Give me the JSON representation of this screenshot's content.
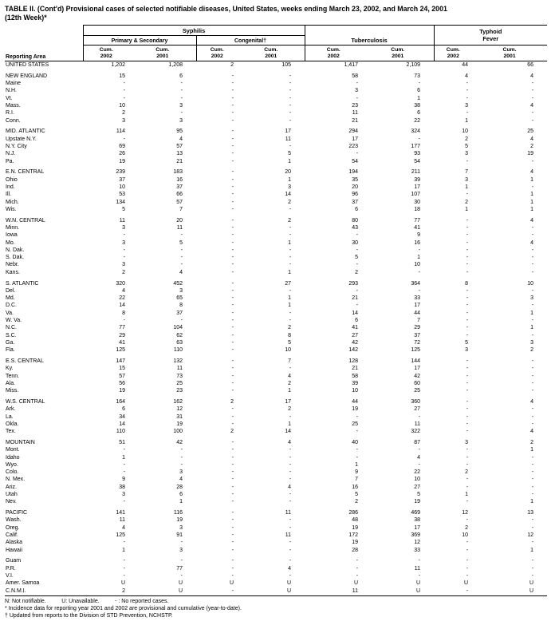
{
  "title": {
    "line1": "TABLE II. (Cont'd) Provisional cases of selected notifiable diseases, United States, weeks ending March 23, 2002, and March 24, 2001",
    "line2": "(12th Week)*"
  },
  "header": {
    "reporting_area": "Reporting Area",
    "syphilis": "Syphilis",
    "primary_secondary": "Primary & Secondary",
    "congenital": "Congenital†",
    "tuberculosis": "Tuberculosis",
    "typhoid_line1": "Typhoid",
    "typhoid_line2": "Fever",
    "cum": "Cum.",
    "years": [
      "2002",
      "2001"
    ]
  },
  "rows": [
    {
      "area": "UNITED STATES",
      "gap": false,
      "values": [
        "1,202",
        "1,208",
        "2",
        "105",
        "1,417",
        "2,109",
        "44",
        "66"
      ]
    },
    {
      "area": "NEW ENGLAND",
      "gap": true,
      "values": [
        "15",
        "6",
        "-",
        "-",
        "58",
        "73",
        "4",
        "4"
      ]
    },
    {
      "area": "Maine",
      "gap": false,
      "values": [
        "-",
        "-",
        "-",
        "-",
        "-",
        "-",
        "-",
        "-"
      ]
    },
    {
      "area": "N.H.",
      "gap": false,
      "values": [
        "-",
        "-",
        "-",
        "-",
        "3",
        "6",
        "-",
        "-"
      ]
    },
    {
      "area": "Vt.",
      "gap": false,
      "values": [
        "-",
        "-",
        "-",
        "-",
        "-",
        "1",
        "-",
        "-"
      ]
    },
    {
      "area": "Mass.",
      "gap": false,
      "values": [
        "10",
        "3",
        "-",
        "-",
        "23",
        "38",
        "3",
        "4"
      ]
    },
    {
      "area": "R.I.",
      "gap": false,
      "values": [
        "2",
        "-",
        "-",
        "-",
        "11",
        "6",
        "-",
        "-"
      ]
    },
    {
      "area": "Conn.",
      "gap": false,
      "values": [
        "3",
        "3",
        "-",
        "-",
        "21",
        "22",
        "1",
        "-"
      ]
    },
    {
      "area": "MID. ATLANTIC",
      "gap": true,
      "values": [
        "114",
        "95",
        "-",
        "17",
        "294",
        "324",
        "10",
        "25"
      ]
    },
    {
      "area": "Upstate N.Y.",
      "gap": false,
      "values": [
        "-",
        "4",
        "-",
        "11",
        "17",
        "-",
        "2",
        "4"
      ]
    },
    {
      "area": "N.Y. City",
      "gap": false,
      "values": [
        "69",
        "57",
        "-",
        "-",
        "223",
        "177",
        "5",
        "2"
      ]
    },
    {
      "area": "N.J.",
      "gap": false,
      "values": [
        "26",
        "13",
        "-",
        "5",
        "-",
        "93",
        "3",
        "19"
      ]
    },
    {
      "area": "Pa.",
      "gap": false,
      "values": [
        "19",
        "21",
        "-",
        "1",
        "54",
        "54",
        "-",
        "-"
      ]
    },
    {
      "area": "E.N. CENTRAL",
      "gap": true,
      "values": [
        "239",
        "183",
        "-",
        "20",
        "194",
        "211",
        "7",
        "4"
      ]
    },
    {
      "area": "Ohio",
      "gap": false,
      "values": [
        "37",
        "16",
        "-",
        "1",
        "35",
        "39",
        "3",
        "1"
      ]
    },
    {
      "area": "Ind.",
      "gap": false,
      "values": [
        "10",
        "37",
        "-",
        "3",
        "20",
        "17",
        "1",
        "-"
      ]
    },
    {
      "area": "Ill.",
      "gap": false,
      "values": [
        "53",
        "66",
        "-",
        "14",
        "96",
        "107",
        "-",
        "1"
      ]
    },
    {
      "area": "Mich.",
      "gap": false,
      "values": [
        "134",
        "57",
        "-",
        "2",
        "37",
        "30",
        "2",
        "1"
      ]
    },
    {
      "area": "Wis.",
      "gap": false,
      "values": [
        "5",
        "7",
        "-",
        "-",
        "6",
        "18",
        "1",
        "1"
      ]
    },
    {
      "area": "W.N. CENTRAL",
      "gap": true,
      "values": [
        "11",
        "20",
        "-",
        "2",
        "80",
        "77",
        "-",
        "4"
      ]
    },
    {
      "area": "Minn.",
      "gap": false,
      "values": [
        "3",
        "11",
        "-",
        "-",
        "43",
        "41",
        "-",
        "-"
      ]
    },
    {
      "area": "Iowa",
      "gap": false,
      "values": [
        "-",
        "-",
        "-",
        "-",
        "-",
        "9",
        "-",
        "-"
      ]
    },
    {
      "area": "Mo.",
      "gap": false,
      "values": [
        "3",
        "5",
        "-",
        "1",
        "30",
        "16",
        "-",
        "4"
      ]
    },
    {
      "area": "N. Dak.",
      "gap": false,
      "values": [
        "-",
        "-",
        "-",
        "-",
        "-",
        "-",
        "-",
        "-"
      ]
    },
    {
      "area": "S. Dak.",
      "gap": false,
      "values": [
        "-",
        "-",
        "-",
        "-",
        "5",
        "1",
        "-",
        "-"
      ]
    },
    {
      "area": "Nebr.",
      "gap": false,
      "values": [
        "3",
        "-",
        "-",
        "-",
        "-",
        "10",
        "-",
        "-"
      ]
    },
    {
      "area": "Kans.",
      "gap": false,
      "values": [
        "2",
        "4",
        "-",
        "1",
        "2",
        "-",
        "-",
        "-"
      ]
    },
    {
      "area": "S. ATLANTIC",
      "gap": true,
      "values": [
        "320",
        "452",
        "-",
        "27",
        "293",
        "364",
        "8",
        "10"
      ]
    },
    {
      "area": "Del.",
      "gap": false,
      "values": [
        "4",
        "3",
        "-",
        "-",
        "-",
        "-",
        "-",
        "-"
      ]
    },
    {
      "area": "Md.",
      "gap": false,
      "values": [
        "22",
        "65",
        "-",
        "1",
        "21",
        "33",
        "-",
        "3"
      ]
    },
    {
      "area": "D.C.",
      "gap": false,
      "values": [
        "14",
        "8",
        "-",
        "1",
        "-",
        "17",
        "-",
        "-"
      ]
    },
    {
      "area": "Va.",
      "gap": false,
      "values": [
        "8",
        "37",
        "-",
        "-",
        "14",
        "44",
        "-",
        "1"
      ]
    },
    {
      "area": "W. Va.",
      "gap": false,
      "values": [
        "-",
        "-",
        "-",
        "-",
        "6",
        "7",
        "-",
        "-"
      ]
    },
    {
      "area": "N.C.",
      "gap": false,
      "values": [
        "77",
        "104",
        "-",
        "2",
        "41",
        "29",
        "-",
        "1"
      ]
    },
    {
      "area": "S.C.",
      "gap": false,
      "values": [
        "29",
        "62",
        "-",
        "8",
        "27",
        "37",
        "-",
        "-"
      ]
    },
    {
      "area": "Ga.",
      "gap": false,
      "values": [
        "41",
        "63",
        "-",
        "5",
        "42",
        "72",
        "5",
        "3"
      ]
    },
    {
      "area": "Fla.",
      "gap": false,
      "values": [
        "125",
        "110",
        "-",
        "10",
        "142",
        "125",
        "3",
        "2"
      ]
    },
    {
      "area": "E.S. CENTRAL",
      "gap": true,
      "values": [
        "147",
        "132",
        "-",
        "7",
        "128",
        "144",
        "-",
        "-"
      ]
    },
    {
      "area": "Ky.",
      "gap": false,
      "values": [
        "15",
        "11",
        "-",
        "-",
        "21",
        "17",
        "-",
        "-"
      ]
    },
    {
      "area": "Tenn.",
      "gap": false,
      "values": [
        "57",
        "73",
        "-",
        "4",
        "58",
        "42",
        "-",
        "-"
      ]
    },
    {
      "area": "Ala.",
      "gap": false,
      "values": [
        "56",
        "25",
        "-",
        "2",
        "39",
        "60",
        "-",
        "-"
      ]
    },
    {
      "area": "Miss.",
      "gap": false,
      "values": [
        "19",
        "23",
        "-",
        "1",
        "10",
        "25",
        "-",
        "-"
      ]
    },
    {
      "area": "W.S. CENTRAL",
      "gap": true,
      "values": [
        "164",
        "162",
        "2",
        "17",
        "44",
        "360",
        "-",
        "4"
      ]
    },
    {
      "area": "Ark.",
      "gap": false,
      "values": [
        "6",
        "12",
        "-",
        "2",
        "19",
        "27",
        "-",
        "-"
      ]
    },
    {
      "area": "La.",
      "gap": false,
      "values": [
        "34",
        "31",
        "-",
        "-",
        "-",
        "-",
        "-",
        "-"
      ]
    },
    {
      "area": "Okla.",
      "gap": false,
      "values": [
        "14",
        "19",
        "-",
        "1",
        "25",
        "11",
        "-",
        "-"
      ]
    },
    {
      "area": "Tex.",
      "gap": false,
      "values": [
        "110",
        "100",
        "2",
        "14",
        "-",
        "322",
        "-",
        "4"
      ]
    },
    {
      "area": "MOUNTAIN",
      "gap": true,
      "values": [
        "51",
        "42",
        "-",
        "4",
        "40",
        "87",
        "3",
        "2"
      ]
    },
    {
      "area": "Mont.",
      "gap": false,
      "values": [
        "-",
        "-",
        "-",
        "-",
        "-",
        "-",
        "-",
        "1"
      ]
    },
    {
      "area": "Idaho",
      "gap": false,
      "values": [
        "1",
        "-",
        "-",
        "-",
        "-",
        "4",
        "-",
        "-"
      ]
    },
    {
      "area": "Wyo.",
      "gap": false,
      "values": [
        "-",
        "-",
        "-",
        "-",
        "1",
        "-",
        "-",
        "-"
      ]
    },
    {
      "area": "Colo.",
      "gap": false,
      "values": [
        "-",
        "3",
        "-",
        "-",
        "9",
        "22",
        "2",
        "-"
      ]
    },
    {
      "area": "N. Mex.",
      "gap": false,
      "values": [
        "9",
        "4",
        "-",
        "-",
        "7",
        "10",
        "-",
        "-"
      ]
    },
    {
      "area": "Ariz.",
      "gap": false,
      "values": [
        "38",
        "28",
        "-",
        "4",
        "16",
        "27",
        "-",
        "-"
      ]
    },
    {
      "area": "Utah",
      "gap": false,
      "values": [
        "3",
        "6",
        "-",
        "-",
        "5",
        "5",
        "1",
        "-"
      ]
    },
    {
      "area": "Nev.",
      "gap": false,
      "values": [
        "-",
        "1",
        "-",
        "-",
        "2",
        "19",
        "-",
        "1"
      ]
    },
    {
      "area": "PACIFIC",
      "gap": true,
      "values": [
        "141",
        "116",
        "-",
        "11",
        "286",
        "469",
        "12",
        "13"
      ]
    },
    {
      "area": "Wash.",
      "gap": false,
      "values": [
        "11",
        "19",
        "-",
        "-",
        "48",
        "38",
        "-",
        "-"
      ]
    },
    {
      "area": "Oreg.",
      "gap": false,
      "values": [
        "4",
        "3",
        "-",
        "-",
        "19",
        "17",
        "2",
        "-"
      ]
    },
    {
      "area": "Calif.",
      "gap": false,
      "values": [
        "125",
        "91",
        "-",
        "11",
        "172",
        "369",
        "10",
        "12"
      ]
    },
    {
      "area": "Alaska",
      "gap": false,
      "values": [
        "-",
        "-",
        "-",
        "-",
        "19",
        "12",
        "-",
        "-"
      ]
    },
    {
      "area": "Hawaii",
      "gap": false,
      "values": [
        "1",
        "3",
        "-",
        "-",
        "28",
        "33",
        "-",
        "1"
      ]
    },
    {
      "area": "Guam",
      "gap": true,
      "values": [
        "-",
        "-",
        "-",
        "-",
        "-",
        "-",
        "-",
        "-"
      ]
    },
    {
      "area": "P.R.",
      "gap": false,
      "values": [
        "-",
        "77",
        "-",
        "4",
        "-",
        "11",
        "-",
        "-"
      ]
    },
    {
      "area": "V.I.",
      "gap": false,
      "values": [
        "-",
        "-",
        "-",
        "-",
        "-",
        "-",
        "-",
        "-"
      ]
    },
    {
      "area": "Amer. Samoa",
      "gap": false,
      "values": [
        "U",
        "U",
        "U",
        "U",
        "U",
        "U",
        "U",
        "U"
      ]
    },
    {
      "area": "C.N.M.I.",
      "gap": false,
      "values": [
        "2",
        "U",
        "-",
        "U",
        "11",
        "U",
        "-",
        "U"
      ]
    }
  ],
  "footnotes": {
    "line1": "N: Not notifiable.          U: Unavailable.          - : No reported cases.",
    "line2": "* Incidence data for reporting year 2001 and 2002 are provisional and cumulative (year-to-date).",
    "line3": "† Updated from reports to the Division of STD Prevention, NCHSTP."
  }
}
